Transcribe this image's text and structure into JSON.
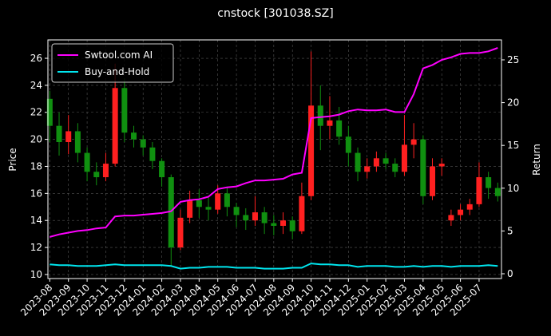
{
  "chart_data": {
    "type": "candlestick_returns",
    "title": "cnstock [301038.SZ]",
    "ylabel": "Price",
    "y2label": "Return",
    "x": [
      0,
      0.5,
      1,
      1.5,
      2,
      2.5,
      3,
      3.5,
      4,
      4.5,
      5,
      5.5,
      6,
      6.5,
      7,
      7.5,
      8,
      8.5,
      9,
      9.5,
      10,
      10.5,
      11,
      11.5,
      12,
      12.5,
      13,
      13.5,
      14,
      14.5,
      15,
      15.5,
      16,
      16.5,
      17,
      17.5,
      18,
      18.5,
      19,
      19.5,
      20,
      20.5,
      21,
      21.5,
      22,
      22.5,
      23,
      23.5,
      24
    ],
    "open": [
      23.0,
      21.0,
      19.8,
      20.6,
      19.0,
      17.6,
      17.2,
      18.2,
      23.8,
      20.5,
      20.0,
      19.4,
      18.4,
      17.2,
      12.0,
      14.2,
      15.5,
      15.0,
      14.8,
      16.0,
      15.0,
      14.4,
      14.0,
      14.6,
      13.8,
      13.6,
      14.0,
      13.2,
      15.8,
      22.5,
      21.0,
      21.4,
      20.2,
      19.0,
      17.6,
      18.0,
      18.6,
      18.2,
      17.6,
      19.6,
      20.0,
      15.8,
      18.0,
      14.0,
      14.4,
      14.8,
      15.2,
      17.2,
      16.4
    ],
    "high": [
      23.6,
      22.0,
      21.8,
      21.2,
      19.4,
      18.3,
      19.0,
      25.6,
      24.5,
      21.0,
      20.3,
      19.8,
      18.6,
      17.4,
      14.8,
      16.2,
      16.3,
      15.8,
      16.6,
      16.4,
      15.3,
      14.9,
      15.8,
      15.0,
      14.4,
      14.6,
      14.3,
      16.8,
      26.5,
      24.0,
      23.2,
      22.4,
      21.0,
      19.4,
      18.6,
      19.1,
      19.0,
      18.6,
      21.8,
      21.2,
      20.3,
      18.6,
      18.6,
      14.8,
      15.2,
      15.6,
      18.3,
      17.6,
      16.8
    ],
    "low": [
      19.8,
      18.8,
      18.9,
      18.3,
      16.9,
      16.6,
      16.9,
      18.0,
      19.8,
      19.4,
      18.8,
      17.8,
      16.5,
      10.6,
      11.8,
      13.8,
      14.2,
      14.0,
      14.5,
      14.3,
      13.5,
      13.3,
      13.6,
      13.0,
      12.9,
      13.0,
      12.6,
      13.0,
      15.5,
      19.2,
      20.0,
      19.6,
      18.0,
      16.9,
      17.1,
      17.6,
      17.8,
      17.2,
      17.3,
      18.6,
      15.2,
      15.5,
      17.3,
      13.6,
      14.0,
      14.4,
      15.0,
      15.6,
      15.4
    ],
    "close": [
      21.0,
      19.8,
      20.6,
      19.0,
      17.6,
      17.2,
      18.2,
      23.8,
      20.5,
      20.0,
      19.4,
      18.4,
      17.2,
      12.0,
      14.2,
      15.5,
      15.0,
      14.8,
      16.0,
      15.0,
      14.4,
      14.0,
      14.6,
      13.8,
      13.6,
      14.0,
      13.2,
      15.8,
      22.5,
      21.0,
      21.4,
      20.2,
      19.0,
      17.6,
      18.0,
      18.6,
      18.2,
      17.6,
      19.6,
      20.0,
      15.8,
      18.0,
      18.2,
      14.4,
      14.8,
      15.2,
      17.2,
      16.4,
      15.8
    ],
    "up_color": "#ff2020",
    "down_color": "#109010",
    "series": [
      {
        "name": "Swtool.com AI",
        "color": "#ff00ff",
        "axis": "y2",
        "values": [
          4.3,
          4.6,
          4.8,
          5.0,
          5.1,
          5.3,
          5.4,
          6.7,
          6.8,
          6.8,
          6.9,
          7.0,
          7.1,
          7.3,
          8.4,
          8.6,
          8.7,
          9.0,
          9.9,
          10.1,
          10.2,
          10.6,
          10.9,
          10.9,
          11.0,
          11.1,
          11.6,
          11.8,
          18.2,
          18.3,
          18.4,
          18.6,
          19.0,
          19.2,
          19.1,
          19.1,
          19.2,
          18.9,
          18.9,
          21.0,
          24.0,
          24.4,
          25.0,
          25.3,
          25.7,
          25.8,
          25.8,
          26.0,
          26.4
        ]
      },
      {
        "name": "Buy-and-Hold",
        "color": "#00e5ee",
        "axis": "y2",
        "values": [
          1.1,
          1.0,
          1.0,
          0.9,
          0.9,
          0.9,
          1.0,
          1.1,
          1.0,
          1.0,
          1.0,
          1.0,
          1.0,
          0.9,
          0.6,
          0.7,
          0.7,
          0.8,
          0.8,
          0.8,
          0.7,
          0.7,
          0.7,
          0.6,
          0.6,
          0.6,
          0.7,
          0.7,
          1.2,
          1.1,
          1.1,
          1.0,
          1.0,
          0.8,
          0.9,
          0.9,
          0.9,
          0.8,
          0.8,
          0.9,
          0.8,
          0.9,
          0.9,
          0.8,
          0.9,
          0.9,
          0.9,
          1.0,
          0.9
        ]
      }
    ],
    "xlim": [
      -0.1,
      24.2
    ],
    "xticks": [
      {
        "value": 0,
        "label": "2023-08"
      },
      {
        "value": 1,
        "label": "2023-09"
      },
      {
        "value": 2,
        "label": "2023-10"
      },
      {
        "value": 3,
        "label": "2023-11"
      },
      {
        "value": 4,
        "label": "2023-12"
      },
      {
        "value": 5,
        "label": "2024-01"
      },
      {
        "value": 6,
        "label": "2024-02"
      },
      {
        "value": 7,
        "label": "2024-03"
      },
      {
        "value": 8,
        "label": "2024-04"
      },
      {
        "value": 9,
        "label": "2024-05"
      },
      {
        "value": 10,
        "label": "2024-06"
      },
      {
        "value": 11,
        "label": "2024-07"
      },
      {
        "value": 12,
        "label": "2024-08"
      },
      {
        "value": 13,
        "label": "2024-09"
      },
      {
        "value": 14,
        "label": "2024-10"
      },
      {
        "value": 15,
        "label": "2024-11"
      },
      {
        "value": 16,
        "label": "2024-12"
      },
      {
        "value": 17,
        "label": "2025-01"
      },
      {
        "value": 18,
        "label": "2025-02"
      },
      {
        "value": 19,
        "label": "2025-03"
      },
      {
        "value": 20,
        "label": "2025-04"
      },
      {
        "value": 21,
        "label": "2025-05"
      },
      {
        "value": 22,
        "label": "2025-06"
      },
      {
        "value": 23,
        "label": "2025-07"
      }
    ],
    "ylim": [
      9.7,
      27.36
    ],
    "yticks": [
      10,
      12,
      14,
      16,
      18,
      20,
      22,
      24,
      26
    ],
    "y2lim": [
      -0.56,
      27.33
    ],
    "y2ticks": [
      0,
      5,
      10,
      15,
      20,
      25
    ],
    "grid": true,
    "legend": "upper left"
  }
}
